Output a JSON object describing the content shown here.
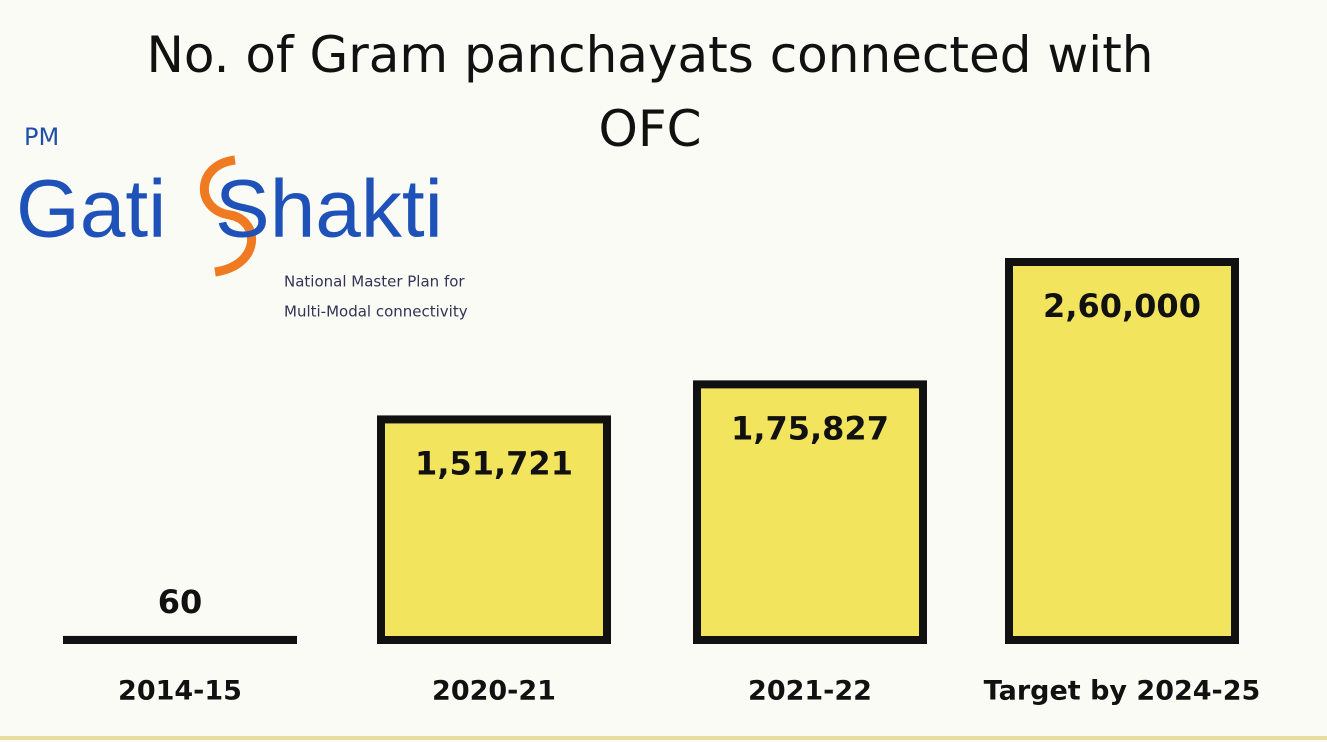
{
  "chart_data": {
    "type": "bar",
    "title": "No. of Gram panchayats connected with OFC",
    "categories": [
      "2014-15",
      "2020-21",
      "2021-22",
      "Target by 2024-25"
    ],
    "values": [
      60,
      151721,
      175827,
      260000
    ],
    "value_labels": [
      "60",
      "1,51,721",
      "1,75,827",
      "2,60,000"
    ],
    "color": "#f2e45c"
  },
  "logo": {
    "prefix": "PM",
    "word1": "Gati",
    "word2": "Shakti",
    "tagline1": "National Master Plan for",
    "tagline2": "Multi-Modal connectivity"
  }
}
